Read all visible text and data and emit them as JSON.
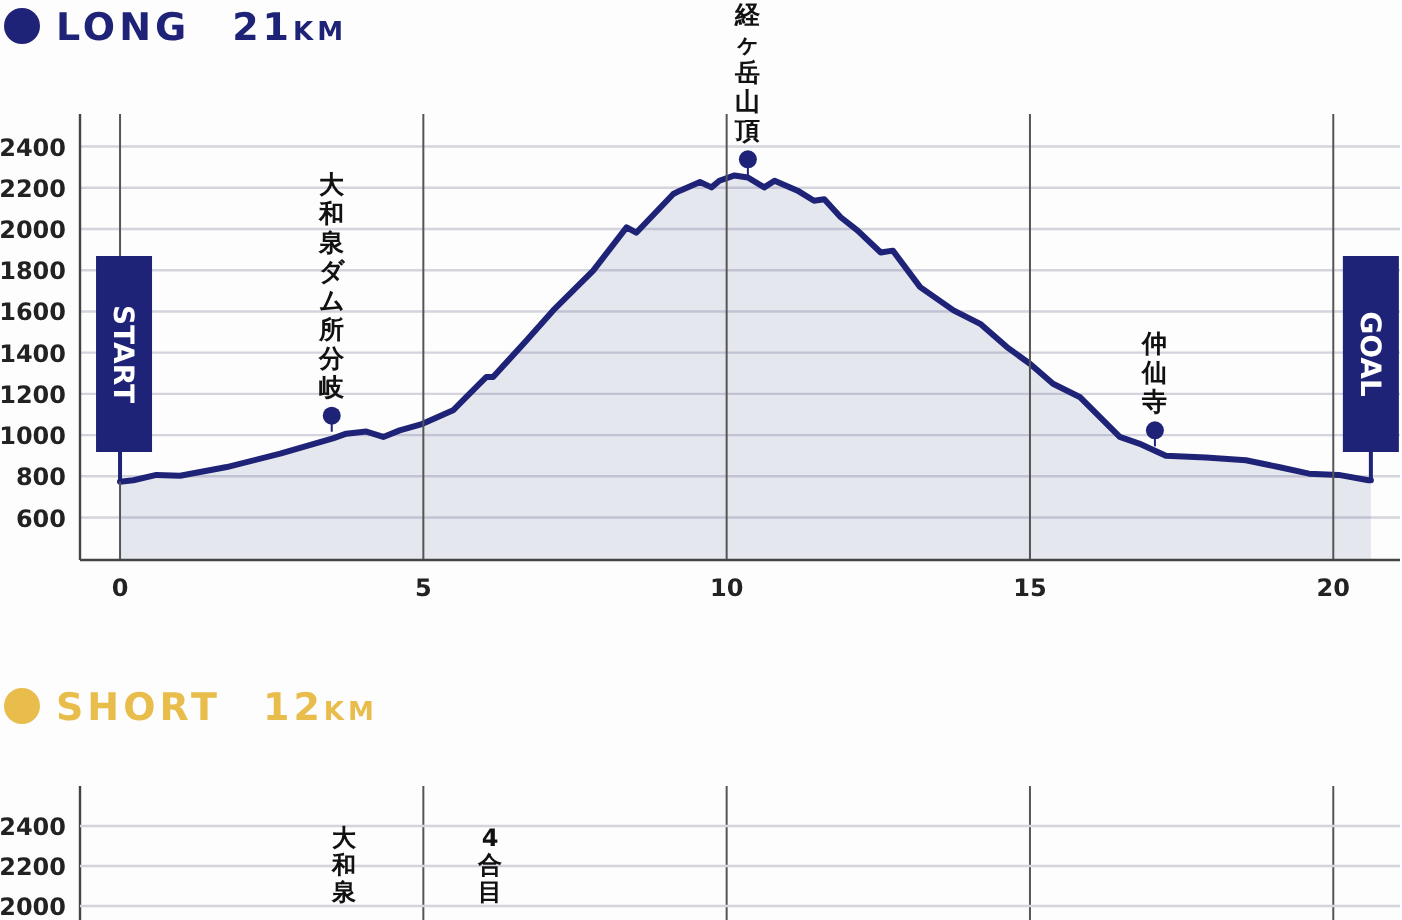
{
  "chart_data": [
    {
      "type": "area",
      "title": "LONG　21km",
      "xlim": [
        -0.66,
        21.1
      ],
      "ylim": [
        394,
        2558
      ],
      "xticks": [
        0,
        5,
        10,
        15,
        20
      ],
      "yticks": [
        600,
        800,
        1000,
        1200,
        1400,
        1600,
        1800,
        2000,
        2200,
        2400
      ],
      "grid": true,
      "series": [
        {
          "color": "#1f2377",
          "x": [
            0,
            0.22,
            0.6,
            0.99,
            1.76,
            2.64,
            3.51,
            3.73,
            4.06,
            4.34,
            4.61,
            4.96,
            5.49,
            5.71,
            6.04,
            6.15,
            6.7,
            7.14,
            7.8,
            8.35,
            8.51,
            9.12,
            9.23,
            9.56,
            9.75,
            9.88,
            10.13,
            10.35,
            10.62,
            10.79,
            11.17,
            11.44,
            11.61,
            11.88,
            12.16,
            12.54,
            12.74,
            13.19,
            13.74,
            14.18,
            14.62,
            15.0,
            15.38,
            15.82,
            16.48,
            16.8,
            17.24,
            17.9,
            18.56,
            19.1,
            19.6,
            20.09,
            20.58,
            20.62
          ],
          "values": [
            774,
            781,
            807,
            803,
            845,
            910,
            984,
            1007,
            1017,
            991,
            1023,
            1052,
            1120,
            1185,
            1282,
            1282,
            1459,
            1605,
            1798,
            2008,
            1982,
            2170,
            2186,
            2228,
            2202,
            2234,
            2260,
            2250,
            2202,
            2234,
            2186,
            2137,
            2144,
            2057,
            1992,
            1886,
            1895,
            1718,
            1605,
            1540,
            1427,
            1346,
            1249,
            1185,
            991,
            959,
            900,
            891,
            878,
            845,
            813,
            807,
            781,
            781
          ]
        }
      ],
      "annotations": [
        {
          "text": "START",
          "x": 0,
          "y": 774
        },
        {
          "text": "大和泉ダム所分岐",
          "x": 3.49,
          "y": 1094
        },
        {
          "text": "経ヶ岳山頂",
          "x": 10.35,
          "y": 2338
        },
        {
          "text": "仲仙寺",
          "x": 17.06,
          "y": 1023
        },
        {
          "text": "GOAL",
          "x": 20.62,
          "y": 781
        }
      ]
    },
    {
      "type": "other",
      "title": "SHORT　12km",
      "annotations": [
        "2400",
        "2200",
        "2000",
        "大和泉",
        "4合目"
      ]
    }
  ]
}
